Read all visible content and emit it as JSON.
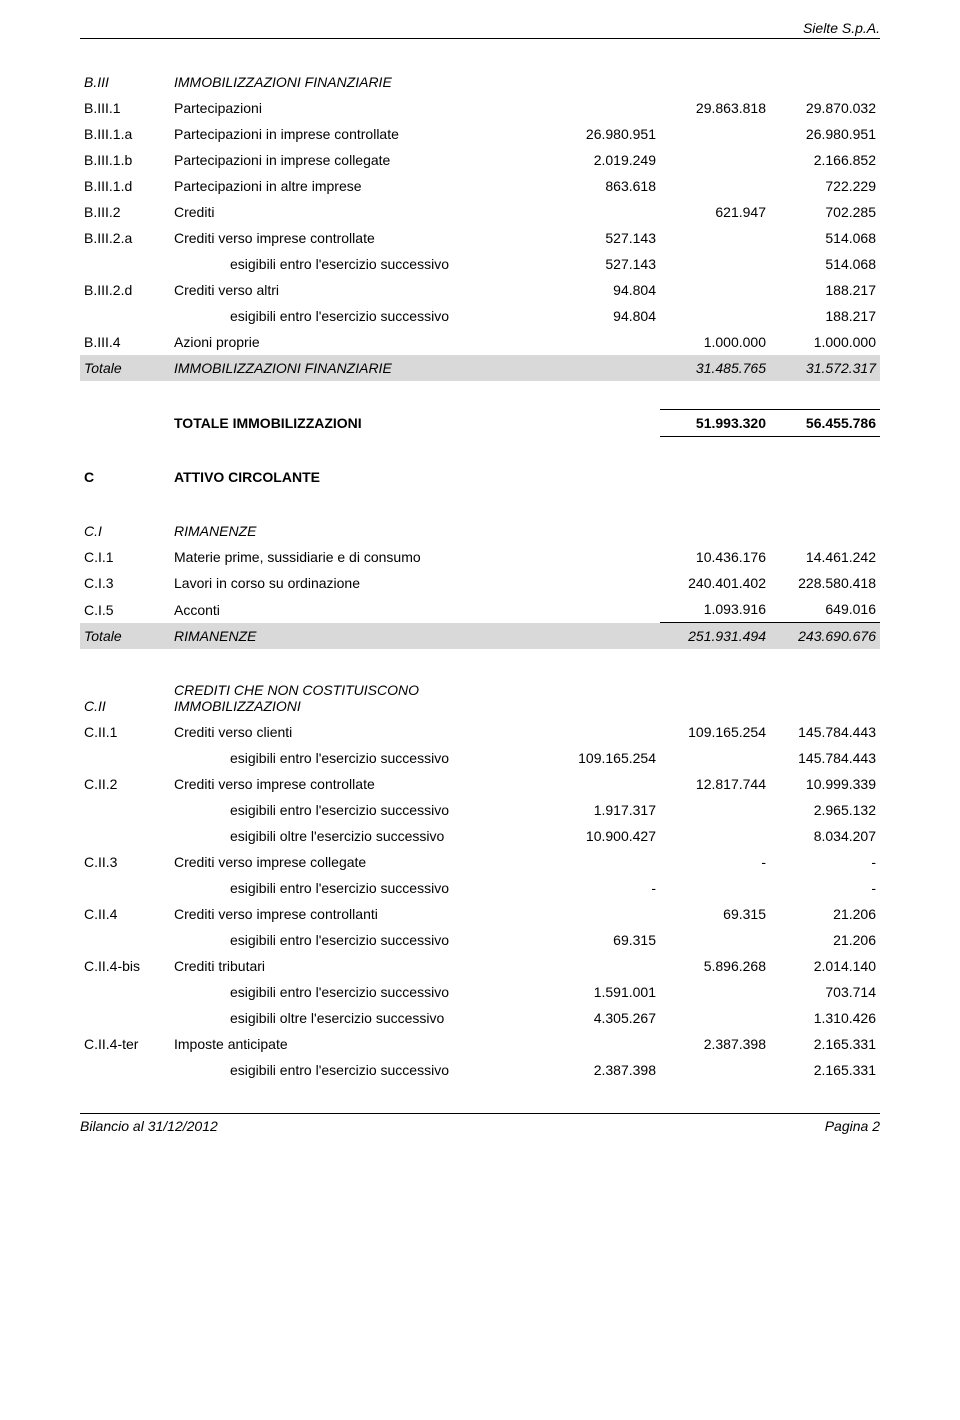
{
  "header": {
    "company": "Sielte S.p.A."
  },
  "footer": {
    "left": "Bilancio al  31/12/2012",
    "right": "Pagina 2"
  },
  "rows": [
    {
      "code": "B.III",
      "desc": "IMMOBILIZZAZIONI FINANZIARIE",
      "c1": "",
      "c2": "",
      "c3": "",
      "ital": true
    },
    {
      "code": "B.III.1",
      "desc": "Partecipazioni",
      "c1": "",
      "c2": "29.863.818",
      "c3": "29.870.032"
    },
    {
      "code": "B.III.1.a",
      "desc": "Partecipazioni in imprese controllate",
      "c1": "26.980.951",
      "c2": "",
      "c3": "26.980.951"
    },
    {
      "code": "B.III.1.b",
      "desc": "Partecipazioni in imprese collegate",
      "c1": "2.019.249",
      "c2": "",
      "c3": "2.166.852"
    },
    {
      "code": "B.III.1.d",
      "desc": "Partecipazioni in altre imprese",
      "c1": "863.618",
      "c2": "",
      "c3": "722.229"
    },
    {
      "code": "B.III.2",
      "desc": "Crediti",
      "c1": "",
      "c2": "621.947",
      "c3": "702.285"
    },
    {
      "code": "B.III.2.a",
      "desc": "Crediti verso imprese controllate",
      "c1": "527.143",
      "c2": "",
      "c3": "514.068"
    },
    {
      "code": "",
      "desc": "esigibili entro l'esercizio successivo",
      "c1": "527.143",
      "c2": "",
      "c3": "514.068",
      "indent": true
    },
    {
      "code": "B.III.2.d",
      "desc": "Crediti verso altri",
      "c1": "94.804",
      "c2": "",
      "c3": "188.217"
    },
    {
      "code": "",
      "desc": "esigibili entro l'esercizio successivo",
      "c1": "94.804",
      "c2": "",
      "c3": "188.217",
      "indent": true
    },
    {
      "code": "B.III.4",
      "desc": "Azioni proprie",
      "c1": "",
      "c2": "1.000.000",
      "c3": "1.000.000"
    },
    {
      "code": "Totale",
      "desc": "IMMOBILIZZAZIONI FINANZIARIE",
      "c1": "",
      "c2": "31.485.765",
      "c3": "31.572.317",
      "totrow": true
    },
    {
      "gap": true
    },
    {
      "code": "",
      "desc": "TOTALE IMMOBILIZZAZIONI",
      "c1": "",
      "c2": "51.993.320",
      "c3": "56.455.786",
      "bold": true,
      "grand": true
    },
    {
      "gap": true
    },
    {
      "code": "C",
      "desc": "ATTIVO CIRCOLANTE",
      "c1": "",
      "c2": "",
      "c3": "",
      "bold": true
    },
    {
      "gap": true
    },
    {
      "code": "C.I",
      "desc": "RIMANENZE",
      "c1": "",
      "c2": "",
      "c3": "",
      "ital": true
    },
    {
      "code": "C.I.1",
      "desc": "Materie prime, sussidiarie e di consumo",
      "c1": "",
      "c2": "10.436.176",
      "c3": "14.461.242"
    },
    {
      "code": "C.I.3",
      "desc": "Lavori in corso su ordinazione",
      "c1": "",
      "c2": "240.401.402",
      "c3": "228.580.418"
    },
    {
      "code": "C.I.5",
      "desc": "Acconti",
      "c1": "",
      "c2": "1.093.916",
      "c3": "649.016",
      "line_below": true
    },
    {
      "code": "Totale",
      "desc": "RIMANENZE",
      "c1": "",
      "c2": "251.931.494",
      "c3": "243.690.676",
      "totrow": true
    },
    {
      "gap": true
    },
    {
      "code": "C.II",
      "desc": "CREDITI CHE NON COSTITUISCONO IMMOBILIZZAZIONI",
      "c1": "",
      "c2": "",
      "c3": "",
      "ital": true
    },
    {
      "code": "C.II.1",
      "desc": "Crediti verso clienti",
      "c1": "",
      "c2": "109.165.254",
      "c3": "145.784.443"
    },
    {
      "code": "",
      "desc": "esigibili entro l'esercizio successivo",
      "c1": "109.165.254",
      "c2": "",
      "c3": "145.784.443",
      "indent": true
    },
    {
      "code": "C.II.2",
      "desc": "Crediti verso imprese controllate",
      "c1": "",
      "c2": "12.817.744",
      "c3": "10.999.339"
    },
    {
      "code": "",
      "desc": "esigibili entro l'esercizio successivo",
      "c1": "1.917.317",
      "c2": "",
      "c3": "2.965.132",
      "indent": true
    },
    {
      "code": "",
      "desc": "esigibili oltre l'esercizio successivo",
      "c1": "10.900.427",
      "c2": "",
      "c3": "8.034.207",
      "indent": true
    },
    {
      "code": "C.II.3",
      "desc": "Crediti verso imprese collegate",
      "c1": "",
      "c2": "-",
      "c3": "-"
    },
    {
      "code": "",
      "desc": "esigibili entro l'esercizio successivo",
      "c1": "-",
      "c2": "",
      "c3": "-",
      "indent": true
    },
    {
      "code": "C.II.4",
      "desc": "Crediti verso imprese controllanti",
      "c1": "",
      "c2": "69.315",
      "c3": "21.206"
    },
    {
      "code": "",
      "desc": "esigibili entro l'esercizio successivo",
      "c1": "69.315",
      "c2": "",
      "c3": "21.206",
      "indent": true
    },
    {
      "code": "C.II.4-bis",
      "desc": "Crediti tributari",
      "c1": "",
      "c2": "5.896.268",
      "c3": "2.014.140"
    },
    {
      "code": "",
      "desc": "esigibili entro l'esercizio successivo",
      "c1": "1.591.001",
      "c2": "",
      "c3": "703.714",
      "indent": true
    },
    {
      "code": "",
      "desc": "esigibili oltre l'esercizio successivo",
      "c1": "4.305.267",
      "c2": "",
      "c3": "1.310.426",
      "indent": true
    },
    {
      "code": "C.II.4-ter",
      "desc": "Imposte anticipate",
      "c1": "",
      "c2": "2.387.398",
      "c3": "2.165.331"
    },
    {
      "code": "",
      "desc": "esigibili entro l'esercizio successivo",
      "c1": "2.387.398",
      "c2": "",
      "c3": "2.165.331",
      "indent": true
    }
  ]
}
